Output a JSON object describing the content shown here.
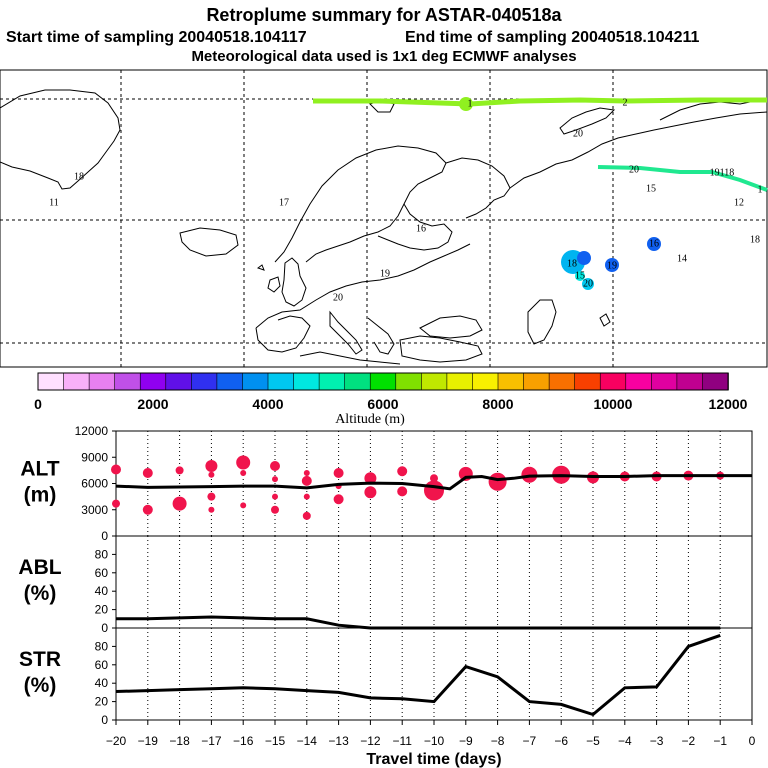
{
  "title": {
    "line1": "Retroplume summary for ASTAR-040518a",
    "line2_start": "Start time of sampling 20040518.104117",
    "line2_end": "End time of sampling 20040518.104211",
    "line3": "Meteorological data used is 1x1 deg ECMWF analyses"
  },
  "colors": {
    "scale": [
      "#ffe0ff",
      "#f8b0f8",
      "#e880f0",
      "#c050e8",
      "#9000f0",
      "#6010e8",
      "#3030f0",
      "#1060f0",
      "#0090f0",
      "#00c8f0",
      "#00e8e0",
      "#00f0b0",
      "#00e080",
      "#00e000",
      "#80e000",
      "#c0e800",
      "#e8f000",
      "#f8f000",
      "#f8c000",
      "#f8a000",
      "#f87000",
      "#f84000",
      "#f80060",
      "#f800a0",
      "#e000a0",
      "#c00090",
      "#900080"
    ],
    "points": "#f0144c",
    "plume_light": "#90f020",
    "plume_teal": "#20e890"
  },
  "colorbar": {
    "label": "Altitude (m)",
    "ticks": [
      "0",
      "2000",
      "4000",
      "6000",
      "8000",
      "10000",
      "12000"
    ]
  },
  "map_labels": [
    {
      "text": "1",
      "pos": [
        470,
        104
      ],
      "size": 14
    },
    {
      "text": "2",
      "pos": [
        625,
        103
      ],
      "size": 13
    },
    {
      "text": "20",
      "pos": [
        578,
        134
      ],
      "size": 10
    },
    {
      "text": "18",
      "pos": [
        79,
        177
      ],
      "size": 10
    },
    {
      "text": "11",
      "pos": [
        54,
        203
      ],
      "size": 10
    },
    {
      "text": "17",
      "pos": [
        284,
        203
      ],
      "size": 10
    },
    {
      "text": "20",
      "pos": [
        634,
        170
      ],
      "size": 14
    },
    {
      "text": "15",
      "pos": [
        651,
        189
      ],
      "size": 10
    },
    {
      "text": "19118",
      "pos": [
        722,
        173
      ],
      "size": 14
    },
    {
      "text": "1",
      "pos": [
        760,
        190
      ],
      "size": 13
    },
    {
      "text": "12",
      "pos": [
        739,
        203
      ],
      "size": 10
    },
    {
      "text": "16",
      "pos": [
        421,
        229
      ],
      "size": 10
    },
    {
      "text": "18",
      "pos": [
        755,
        240
      ],
      "size": 10
    },
    {
      "text": "16",
      "pos": [
        654,
        244
      ],
      "size": 10
    },
    {
      "text": "14",
      "pos": [
        682,
        259
      ],
      "size": 10
    },
    {
      "text": "18",
      "pos": [
        572,
        264
      ],
      "size": 15
    },
    {
      "text": "19",
      "pos": [
        612,
        266
      ],
      "size": 10
    },
    {
      "text": "19",
      "pos": [
        385,
        274
      ],
      "size": 10
    },
    {
      "text": "15",
      "pos": [
        580,
        276
      ],
      "size": 10
    },
    {
      "text": "20",
      "pos": [
        588,
        284
      ],
      "size": 10
    },
    {
      "text": "20",
      "pos": [
        338,
        298
      ],
      "size": 10
    }
  ],
  "chart_data": [
    {
      "type": "scatter",
      "name": "ALT",
      "ylabel": "ALT\n(m)",
      "xlabel": "Travel time (days)",
      "x_ticks": [
        -20,
        -19,
        -18,
        -17,
        -16,
        -15,
        -14,
        -13,
        -12,
        -11,
        -10,
        -9,
        -8,
        -7,
        -6,
        -5,
        -4,
        -3,
        -2,
        -1,
        0
      ],
      "xlim": [
        -20,
        0
      ],
      "ylim": [
        0,
        12000
      ],
      "y_ticks": [
        0,
        3000,
        6000,
        9000,
        12000
      ],
      "mean_altitude": {
        "x": [
          -20,
          -19,
          -18,
          -17,
          -16,
          -15,
          -14,
          -13,
          -12,
          -11,
          -10,
          -9.5,
          -9,
          -8.5,
          -8,
          -7.5,
          -7,
          -6,
          -5,
          -4,
          -3,
          -2,
          -1,
          0
        ],
        "y": [
          5700,
          5550,
          5600,
          5650,
          5700,
          5700,
          5500,
          5900,
          6050,
          6000,
          5650,
          5400,
          6700,
          6800,
          6450,
          6600,
          6850,
          6900,
          6800,
          6800,
          6900,
          6900,
          6900,
          6900
        ]
      },
      "points": [
        {
          "x": -20,
          "y": 7600,
          "s": 5
        },
        {
          "x": -20,
          "y": 3700,
          "s": 4
        },
        {
          "x": -19,
          "y": 7200,
          "s": 5
        },
        {
          "x": -19,
          "y": 3000,
          "s": 5
        },
        {
          "x": -18,
          "y": 7500,
          "s": 4
        },
        {
          "x": -18,
          "y": 3700,
          "s": 7
        },
        {
          "x": -17,
          "y": 8000,
          "s": 6
        },
        {
          "x": -17,
          "y": 7000,
          "s": 3
        },
        {
          "x": -17,
          "y": 4500,
          "s": 4
        },
        {
          "x": -17,
          "y": 3000,
          "s": 3
        },
        {
          "x": -16,
          "y": 8400,
          "s": 7
        },
        {
          "x": -16,
          "y": 7200,
          "s": 3
        },
        {
          "x": -16,
          "y": 3500,
          "s": 3
        },
        {
          "x": -15,
          "y": 8000,
          "s": 5
        },
        {
          "x": -15,
          "y": 6500,
          "s": 3
        },
        {
          "x": -15,
          "y": 4500,
          "s": 3
        },
        {
          "x": -15,
          "y": 3000,
          "s": 4
        },
        {
          "x": -14,
          "y": 7200,
          "s": 3
        },
        {
          "x": -14,
          "y": 6300,
          "s": 5
        },
        {
          "x": -14,
          "y": 4500,
          "s": 3
        },
        {
          "x": -14,
          "y": 2300,
          "s": 4
        },
        {
          "x": -13,
          "y": 7200,
          "s": 5
        },
        {
          "x": -13,
          "y": 5700,
          "s": 3
        },
        {
          "x": -13,
          "y": 4200,
          "s": 5
        },
        {
          "x": -12,
          "y": 6600,
          "s": 6
        },
        {
          "x": -12,
          "y": 5000,
          "s": 6
        },
        {
          "x": -11,
          "y": 7400,
          "s": 5
        },
        {
          "x": -11,
          "y": 5100,
          "s": 5
        },
        {
          "x": -10,
          "y": 6600,
          "s": 4
        },
        {
          "x": -10,
          "y": 5200,
          "s": 10
        },
        {
          "x": -9,
          "y": 7100,
          "s": 7
        },
        {
          "x": -8,
          "y": 6200,
          "s": 9
        },
        {
          "x": -7,
          "y": 7000,
          "s": 8
        },
        {
          "x": -6,
          "y": 7000,
          "s": 9
        },
        {
          "x": -5,
          "y": 6700,
          "s": 6
        },
        {
          "x": -4,
          "y": 6800,
          "s": 5
        },
        {
          "x": -3,
          "y": 6800,
          "s": 5
        },
        {
          "x": -2,
          "y": 6900,
          "s": 5
        },
        {
          "x": -1,
          "y": 6900,
          "s": 4
        }
      ]
    },
    {
      "type": "line",
      "name": "ABL",
      "ylabel": "ABL\n(%)",
      "ylim": [
        0,
        100
      ],
      "y_ticks": [
        0,
        20,
        40,
        60,
        80
      ],
      "x": [
        -20,
        -19,
        -18,
        -17,
        -16,
        -15,
        -14,
        -13,
        -12,
        -11,
        -10,
        -9,
        -8,
        -7,
        -6,
        -5,
        -4,
        -3,
        -2,
        -1
      ],
      "values": [
        10,
        10,
        11,
        12,
        11,
        10,
        10,
        3,
        0,
        0,
        0,
        0,
        0,
        0,
        0,
        0,
        0,
        0,
        0,
        0
      ]
    },
    {
      "type": "line",
      "name": "STR",
      "ylabel": "STR\n(%)",
      "ylim": [
        0,
        100
      ],
      "y_ticks": [
        0,
        20,
        40,
        60,
        80
      ],
      "x": [
        -20,
        -19,
        -18,
        -17,
        -16,
        -15,
        -14,
        -13,
        -12,
        -11,
        -10,
        -9,
        -8,
        -7,
        -6,
        -5,
        -4,
        -3,
        -2,
        -1
      ],
      "values": [
        31,
        32,
        33,
        34,
        35,
        34,
        32,
        30,
        24,
        23,
        20,
        58,
        47,
        20,
        17,
        6,
        35,
        36,
        80,
        92
      ]
    }
  ]
}
